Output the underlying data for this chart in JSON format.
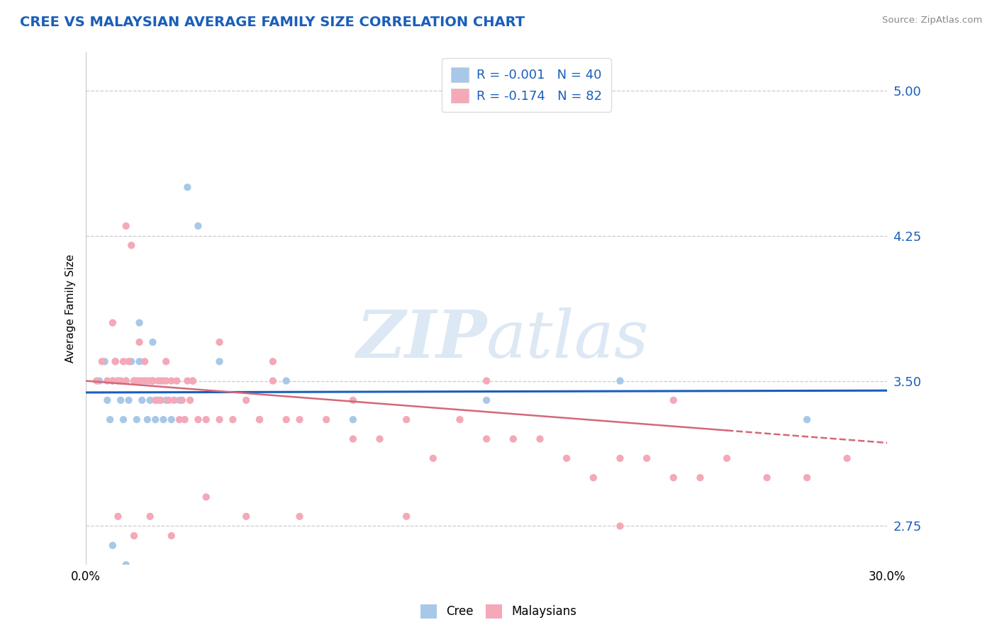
{
  "title": "CREE VS MALAYSIAN AVERAGE FAMILY SIZE CORRELATION CHART",
  "source": "Source: ZipAtlas.com",
  "ylabel": "Average Family Size",
  "yticks": [
    2.75,
    3.5,
    4.25,
    5.0
  ],
  "xlim": [
    0.0,
    30.0
  ],
  "ylim": [
    2.55,
    5.2
  ],
  "cree_r": "R = -0.001",
  "cree_n": "N = 40",
  "malay_r": "R = -0.174",
  "malay_n": "N = 82",
  "cree_color": "#a8c8e8",
  "malaysian_color": "#f4a8b8",
  "cree_line_color": "#1a5fba",
  "malaysian_line_color": "#d46878",
  "title_color": "#1a5fba",
  "axis_tick_color": "#1a5fba",
  "watermark_color": "#dce8f4",
  "grid_color": "#cccccc",
  "cree_trend_x0": 0.0,
  "cree_trend_y0": 3.44,
  "cree_trend_x1": 30.0,
  "cree_trend_y1": 3.45,
  "malay_trend_x0": 0.0,
  "malay_trend_y0": 3.5,
  "malay_trend_x1": 30.0,
  "malay_trend_y1": 3.18,
  "cree_points_x": [
    0.5,
    0.7,
    0.8,
    0.9,
    1.0,
    1.1,
    1.2,
    1.3,
    1.4,
    1.5,
    1.6,
    1.7,
    1.8,
    1.9,
    2.0,
    2.1,
    2.2,
    2.3,
    2.4,
    2.5,
    2.6,
    2.7,
    2.8,
    2.9,
    3.0,
    3.2,
    3.5,
    3.8,
    4.2,
    5.0,
    6.5,
    7.5,
    10.0,
    15.0,
    20.0,
    27.0,
    1.0,
    1.5,
    2.0,
    2.5
  ],
  "cree_points_y": [
    3.5,
    3.6,
    3.4,
    3.3,
    3.5,
    3.6,
    3.5,
    3.4,
    3.3,
    3.5,
    3.4,
    3.6,
    3.5,
    3.3,
    3.6,
    3.4,
    3.5,
    3.3,
    3.4,
    3.5,
    3.3,
    3.4,
    3.5,
    3.3,
    3.4,
    3.3,
    3.4,
    4.5,
    4.3,
    3.6,
    3.3,
    3.5,
    3.3,
    3.4,
    3.5,
    3.3,
    2.65,
    2.55,
    3.8,
    3.7
  ],
  "malaysian_points_x": [
    0.4,
    0.6,
    0.8,
    1.0,
    1.1,
    1.2,
    1.3,
    1.4,
    1.5,
    1.6,
    1.7,
    1.8,
    1.9,
    2.0,
    2.1,
    2.2,
    2.3,
    2.4,
    2.5,
    2.6,
    2.7,
    2.8,
    2.9,
    3.0,
    3.1,
    3.2,
    3.3,
    3.4,
    3.5,
    3.6,
    3.7,
    3.8,
    3.9,
    4.0,
    4.2,
    4.5,
    5.0,
    5.5,
    6.0,
    6.5,
    7.0,
    7.5,
    8.0,
    9.0,
    10.0,
    11.0,
    12.0,
    13.0,
    14.0,
    15.0,
    16.0,
    17.0,
    18.0,
    19.0,
    20.0,
    21.0,
    22.0,
    23.0,
    24.0,
    25.5,
    27.0,
    28.5,
    1.0,
    1.5,
    2.0,
    2.5,
    3.0,
    4.0,
    5.0,
    7.0,
    10.0,
    15.0,
    1.2,
    1.8,
    2.4,
    3.2,
    4.5,
    6.0,
    8.0,
    12.0,
    20.0,
    22.0
  ],
  "malaysian_points_y": [
    3.5,
    3.6,
    3.5,
    3.5,
    3.6,
    3.5,
    3.5,
    3.6,
    3.5,
    3.6,
    4.2,
    3.5,
    3.5,
    3.5,
    3.5,
    3.6,
    3.5,
    3.5,
    3.5,
    3.4,
    3.5,
    3.4,
    3.5,
    3.5,
    3.4,
    3.5,
    3.4,
    3.5,
    3.3,
    3.4,
    3.3,
    3.5,
    3.4,
    3.5,
    3.3,
    3.3,
    3.3,
    3.3,
    3.4,
    3.3,
    3.5,
    3.3,
    3.3,
    3.3,
    3.2,
    3.2,
    3.3,
    3.1,
    3.3,
    3.2,
    3.2,
    3.2,
    3.1,
    3.0,
    3.1,
    3.1,
    3.0,
    3.0,
    3.1,
    3.0,
    3.0,
    3.1,
    3.8,
    4.3,
    3.7,
    3.5,
    3.6,
    3.5,
    3.7,
    3.6,
    3.4,
    3.5,
    2.8,
    2.7,
    2.8,
    2.7,
    2.9,
    2.8,
    2.8,
    2.8,
    2.75,
    3.4
  ]
}
